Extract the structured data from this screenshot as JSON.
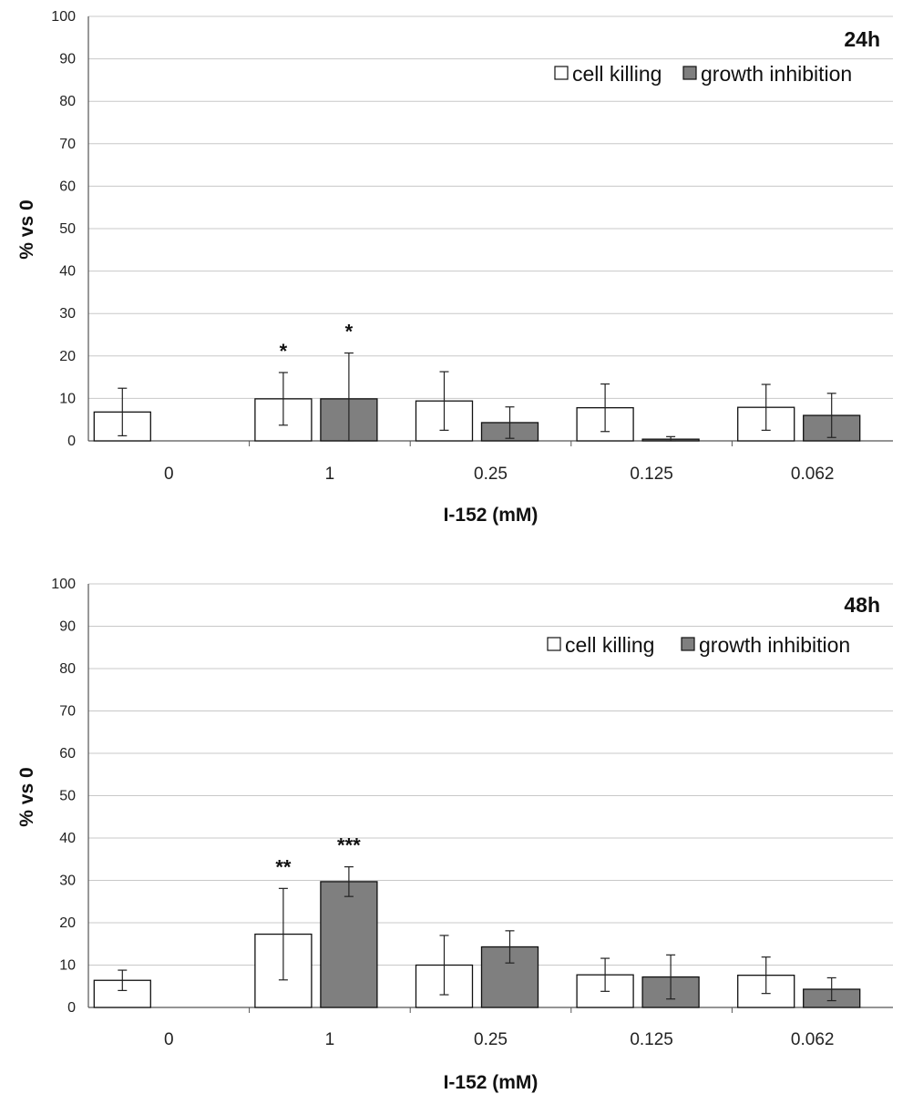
{
  "colors": {
    "cell_killing_fill": "#ffffff",
    "growth_inhibition_fill": "#7f7f7f",
    "bar_stroke": "#111111",
    "grid": "#c8c8c8",
    "axis": "#555555"
  },
  "chart_data": [
    {
      "type": "bar",
      "title": "24h",
      "xlabel": "I-152 (mM)",
      "ylabel": "% vs 0",
      "ylim": [
        0,
        100
      ],
      "yticks": [
        0,
        10,
        20,
        30,
        40,
        50,
        60,
        70,
        80,
        90,
        100
      ],
      "grid": true,
      "legend_position": "top-right",
      "categories": [
        "0",
        "1",
        "0.25",
        "0.125",
        "0.062"
      ],
      "series": [
        {
          "name": "cell killing",
          "values": [
            6.8,
            9.9,
            9.4,
            7.8,
            7.9
          ],
          "errors": [
            5.6,
            6.2,
            6.9,
            5.6,
            5.4
          ],
          "significance": [
            "",
            "*",
            "",
            "",
            ""
          ]
        },
        {
          "name": "growth inhibition",
          "values": [
            null,
            9.9,
            4.3,
            0.4,
            6.0
          ],
          "errors": [
            null,
            10.8,
            3.7,
            0.6,
            5.2
          ],
          "significance": [
            "",
            "*",
            "",
            "",
            ""
          ]
        }
      ]
    },
    {
      "type": "bar",
      "title": "48h",
      "xlabel": "I-152 (mM)",
      "ylabel": "% vs 0",
      "ylim": [
        0,
        100
      ],
      "yticks": [
        0,
        10,
        20,
        30,
        40,
        50,
        60,
        70,
        80,
        90,
        100
      ],
      "grid": true,
      "legend_position": "top-right",
      "categories": [
        "0",
        "1",
        "0.25",
        "0.125",
        "0.062"
      ],
      "series": [
        {
          "name": "cell killing",
          "values": [
            6.4,
            17.3,
            10.0,
            7.7,
            7.6
          ],
          "errors": [
            2.4,
            10.8,
            7.0,
            3.9,
            4.3
          ],
          "significance": [
            "",
            "**",
            "",
            "",
            ""
          ]
        },
        {
          "name": "growth inhibition",
          "values": [
            null,
            29.7,
            14.3,
            7.2,
            4.3
          ],
          "errors": [
            null,
            3.5,
            3.8,
            5.2,
            2.7
          ],
          "significance": [
            "",
            "***",
            "",
            "",
            ""
          ]
        }
      ]
    }
  ]
}
